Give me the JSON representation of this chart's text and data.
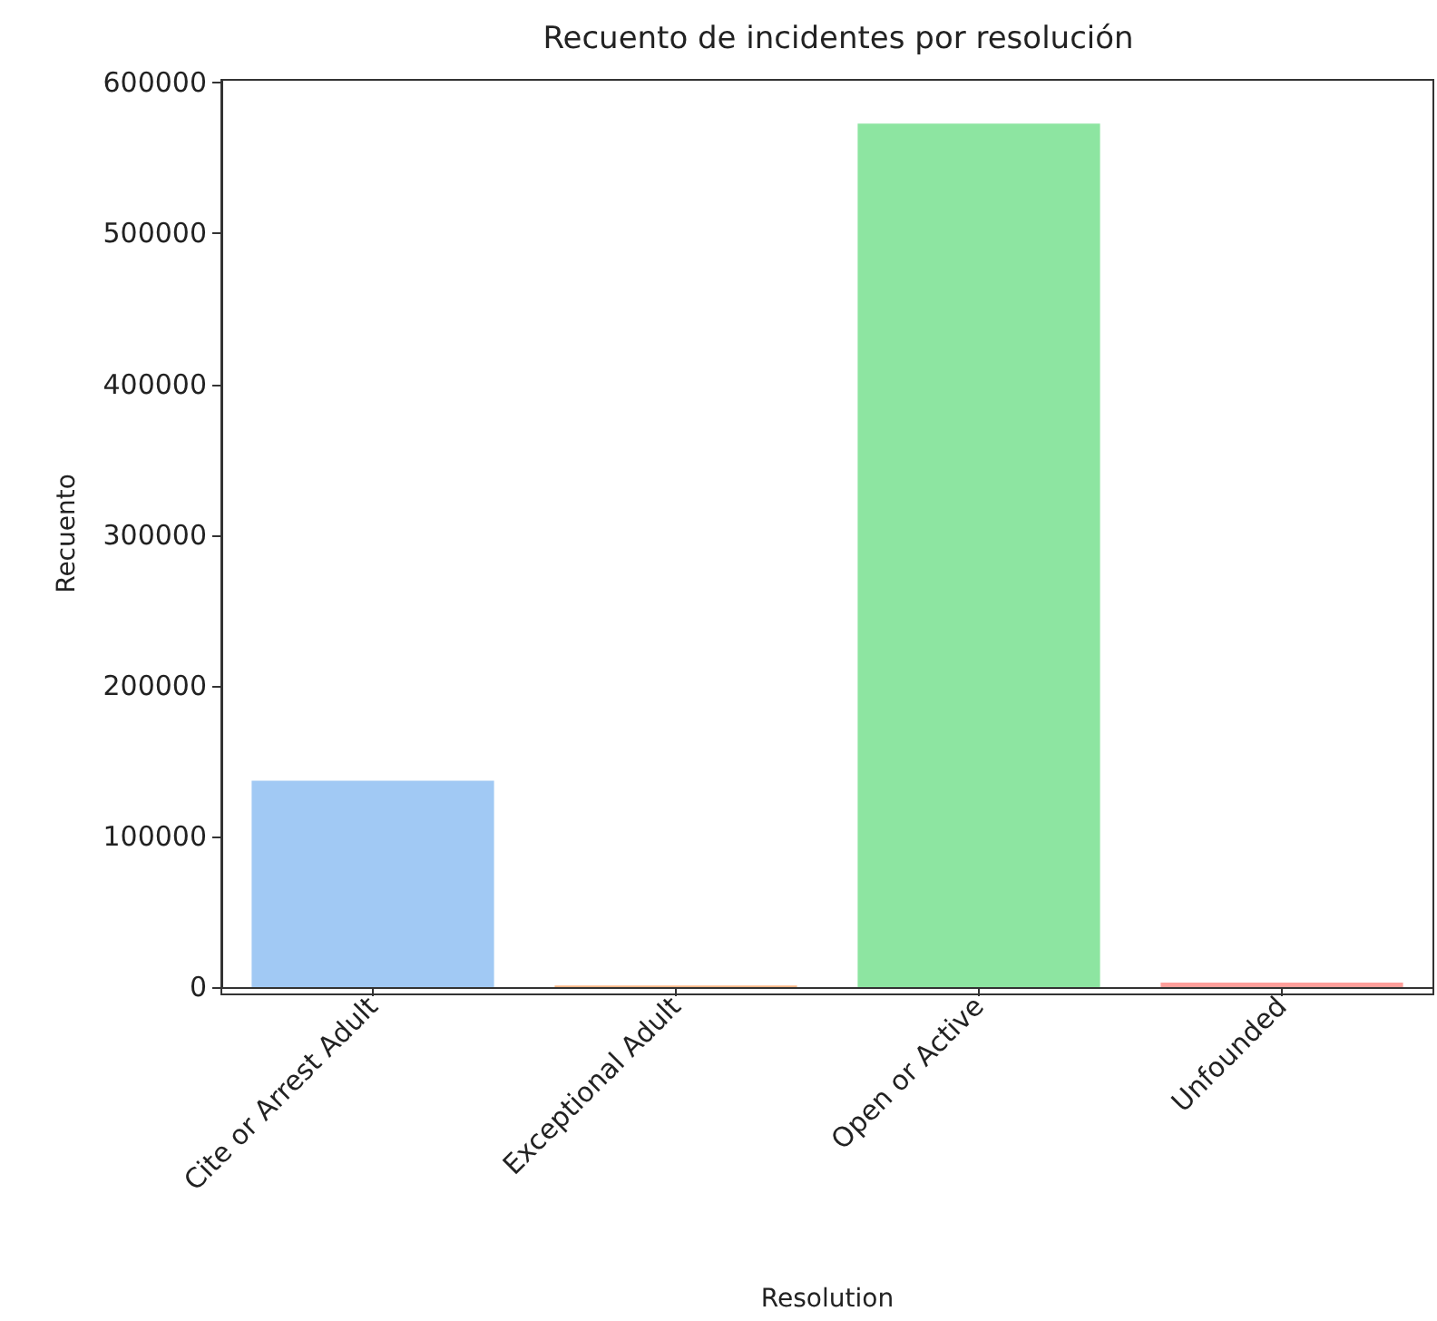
{
  "chart_data": {
    "type": "bar",
    "title": "Recuento de incidentes por resolución",
    "xlabel": "Resolution",
    "ylabel": "Recuento",
    "categories": [
      "Cite or Arrest Adult",
      "Exceptional Adult",
      "Open or Active",
      "Unfounded"
    ],
    "values": [
      137000,
      1000,
      573000,
      3000
    ],
    "colors": [
      "#a1c9f4",
      "#ffb482",
      "#8de5a1",
      "#ff9f9b"
    ],
    "ylim": [
      0,
      602000
    ],
    "yticks": [
      0,
      100000,
      200000,
      300000,
      400000,
      500000,
      600000
    ],
    "grid": false
  }
}
